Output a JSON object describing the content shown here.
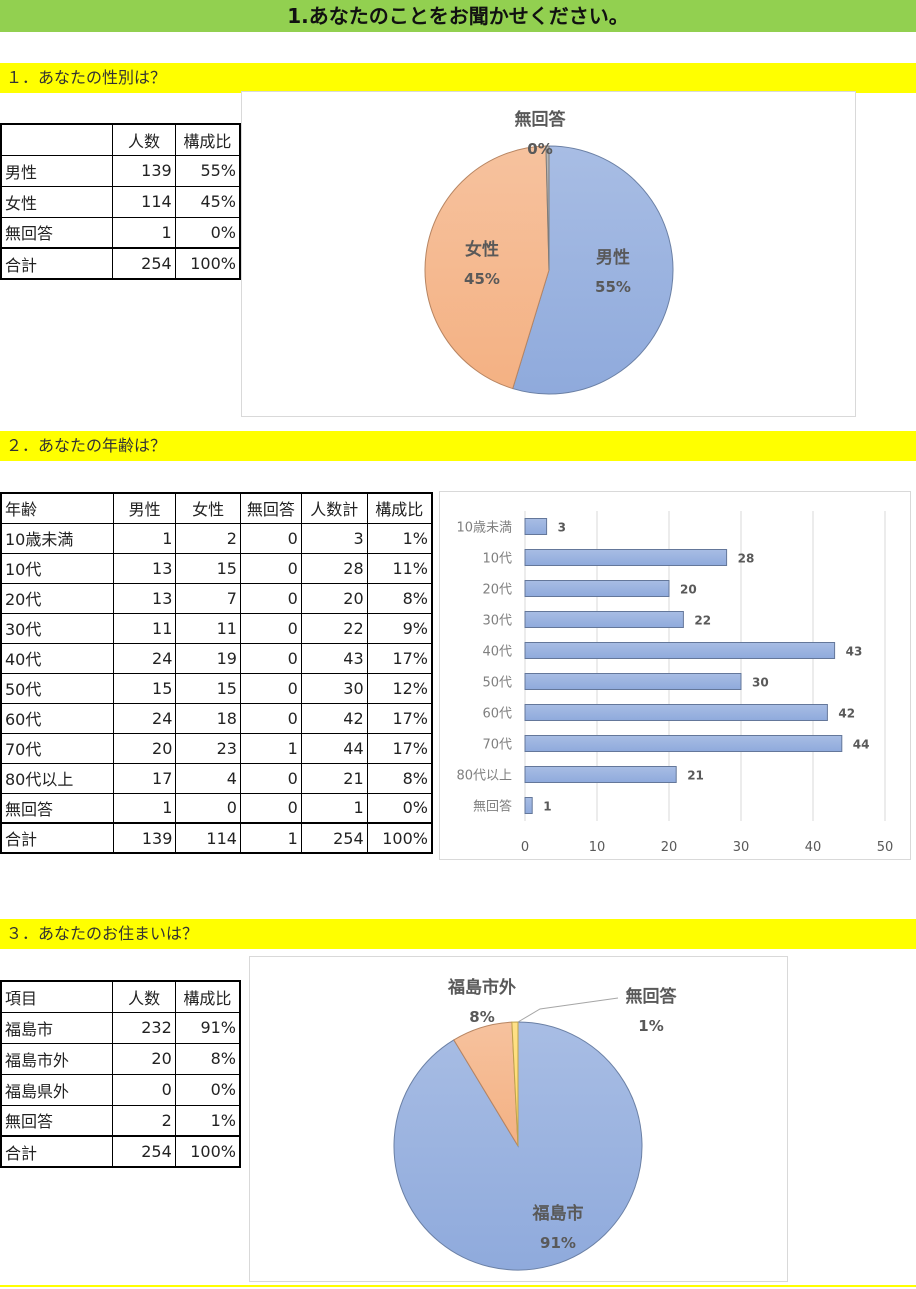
{
  "banner": "1.あなたのことをお聞かせください。",
  "sections": {
    "s1": "１．あなたの性別は？",
    "s2": "２．あなたの年齢は？",
    "s3": "３．あなたのお住まいは？"
  },
  "gender_table": {
    "headers": [
      "",
      "人数",
      "構成比"
    ],
    "rows": [
      [
        "男性",
        "139",
        "55%"
      ],
      [
        "女性",
        "114",
        "45%"
      ],
      [
        "無回答",
        "1",
        "0%"
      ],
      [
        "合計",
        "254",
        "100%"
      ]
    ]
  },
  "age_table": {
    "headers": [
      "年齢",
      "男性",
      "女性",
      "無回答",
      "人数計",
      "構成比"
    ],
    "rows": [
      [
        "10歳未満",
        "1",
        "2",
        "0",
        "3",
        "1%"
      ],
      [
        "10代",
        "13",
        "15",
        "0",
        "28",
        "11%"
      ],
      [
        "20代",
        "13",
        "7",
        "0",
        "20",
        "8%"
      ],
      [
        "30代",
        "11",
        "11",
        "0",
        "22",
        "9%"
      ],
      [
        "40代",
        "24",
        "19",
        "0",
        "43",
        "17%"
      ],
      [
        "50代",
        "15",
        "15",
        "0",
        "30",
        "12%"
      ],
      [
        "60代",
        "24",
        "18",
        "0",
        "42",
        "17%"
      ],
      [
        "70代",
        "20",
        "23",
        "1",
        "44",
        "17%"
      ],
      [
        "80代以上",
        "17",
        "4",
        "0",
        "21",
        "8%"
      ],
      [
        "無回答",
        "1",
        "0",
        "0",
        "1",
        "0%"
      ],
      [
        "合計",
        "139",
        "114",
        "1",
        "254",
        "100%"
      ]
    ]
  },
  "residence_table": {
    "headers": [
      "項目",
      "人数",
      "構成比"
    ],
    "rows": [
      [
        "福島市",
        "232",
        "91%"
      ],
      [
        "福島市外",
        "20",
        "8%"
      ],
      [
        "福島県外",
        "0",
        "0%"
      ],
      [
        "無回答",
        "2",
        "1%"
      ],
      [
        "合計",
        "254",
        "100%"
      ]
    ]
  },
  "chart_data": [
    {
      "type": "pie",
      "categories": [
        "男性",
        "女性",
        "無回答"
      ],
      "values": [
        139,
        114,
        1
      ],
      "percent_labels": [
        "55%",
        "45%",
        "0%"
      ],
      "colors": [
        "#8faadc",
        "#f4b183",
        "#a5a5a5"
      ]
    },
    {
      "type": "bar",
      "orientation": "horizontal",
      "categories": [
        "10歳未満",
        "10代",
        "20代",
        "30代",
        "40代",
        "50代",
        "60代",
        "70代",
        "80代以上",
        "無回答"
      ],
      "values": [
        3,
        28,
        20,
        22,
        43,
        30,
        42,
        44,
        21,
        1
      ],
      "xlim": [
        0,
        50
      ],
      "xticks": [
        "0",
        "10",
        "20",
        "30",
        "40",
        "50"
      ],
      "grid": true,
      "color": "#8faadc"
    },
    {
      "type": "pie",
      "categories": [
        "福島市",
        "福島市外",
        "無回答"
      ],
      "values": [
        232,
        20,
        2
      ],
      "percent_labels": [
        "91%",
        "8%",
        "1%"
      ],
      "colors": [
        "#8faadc",
        "#f4b183",
        "#ffd966"
      ]
    }
  ]
}
